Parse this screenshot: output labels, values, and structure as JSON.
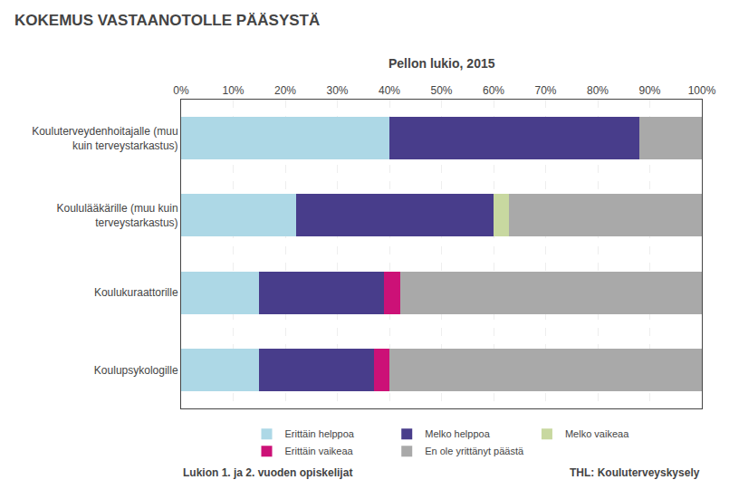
{
  "chart_data": {
    "type": "bar",
    "orientation": "horizontal",
    "stacked": true,
    "title": "KOKEMUS VASTAANOTOLLE PÄÄSYSTÄ",
    "subtitle": "Pellon lukio, 2015",
    "categories": [
      "Kouluterveydenhoitajalle (muu\nkuin terveystarkastus)",
      "Koululääkärille (muu kuin\nterveystarkastus)",
      "Koulukuraattorille",
      "Koulupsykologille"
    ],
    "series": [
      {
        "name": "Erittäin helppoa",
        "color": "#add8e6",
        "values": [
          40,
          22,
          15,
          15
        ]
      },
      {
        "name": "Melko helppoa",
        "color": "#483d8b",
        "values": [
          48,
          38,
          24,
          22
        ]
      },
      {
        "name": "Melko vaikeaa",
        "color": "#c8d8a0",
        "values": [
          0,
          3,
          0,
          0
        ]
      },
      {
        "name": "Erittäin vaikeaa",
        "color": "#cc1177",
        "values": [
          0,
          0,
          3,
          3
        ]
      },
      {
        "name": "En ole yrittänyt päästä",
        "color": "#a9a9a9",
        "values": [
          12,
          37,
          58,
          60
        ]
      }
    ],
    "xlim": [
      0,
      100
    ],
    "xticks": [
      {
        "value": 0,
        "label": "0%"
      },
      {
        "value": 10,
        "label": "10%"
      },
      {
        "value": 20,
        "label": "20%"
      },
      {
        "value": 30,
        "label": "30%"
      },
      {
        "value": 40,
        "label": "40%"
      },
      {
        "value": 50,
        "label": "50%"
      },
      {
        "value": 60,
        "label": "60%"
      },
      {
        "value": 70,
        "label": "70%"
      },
      {
        "value": 80,
        "label": "80%"
      },
      {
        "value": 90,
        "label": "90%"
      },
      {
        "value": 100,
        "label": "100%"
      }
    ],
    "grid": true,
    "legend": "bottom",
    "annotations": [
      "Lukion 1. ja 2. vuoden opiskelijat",
      "THL: Kouluterveyskysely"
    ]
  }
}
